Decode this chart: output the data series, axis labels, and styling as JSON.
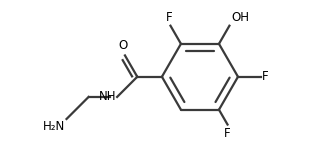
{
  "background": "#ffffff",
  "line_color": "#3a3a3a",
  "text_color": "#000000",
  "bond_lw": 1.6,
  "font_size": 8.5,
  "fig_width": 3.1,
  "fig_height": 1.57,
  "dpi": 100,
  "labels": {
    "F_top_left": "F",
    "OH_top_right": "OH",
    "F_right": "F",
    "F_bottom": "F",
    "O": "O",
    "NH": "NH",
    "H2N": "H₂N"
  }
}
